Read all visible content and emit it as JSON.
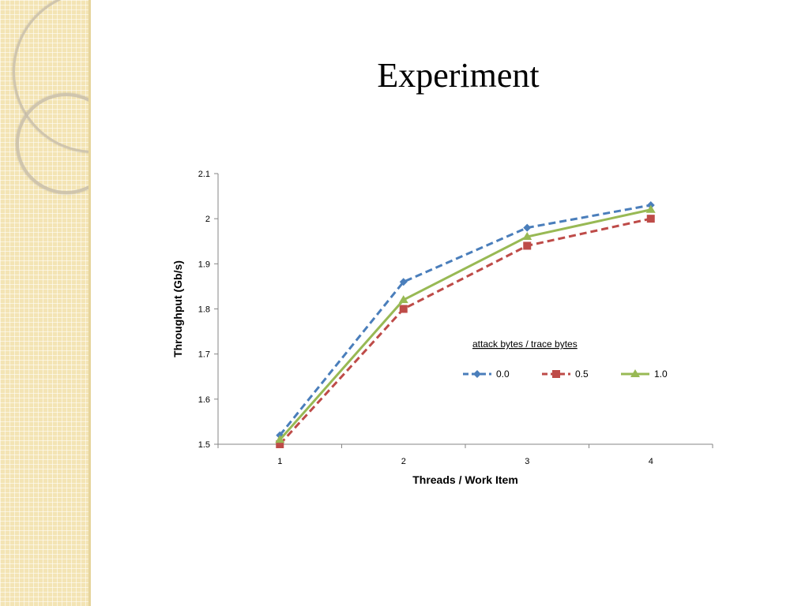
{
  "slide": {
    "title": "Experiment"
  },
  "chart_data": {
    "type": "line",
    "title": "",
    "xlabel": "Threads / Work Item",
    "ylabel": "Throughput (Gb/s)",
    "categories": [
      "1",
      "2",
      "3",
      "4"
    ],
    "ylim": [
      1.5,
      2.1
    ],
    "yticks": [
      "1.5",
      "1.6",
      "1.7",
      "1.8",
      "1.9",
      "2",
      "2.1"
    ],
    "grid": false,
    "legend": {
      "title": "attack bytes / trace bytes",
      "position": "inside-right"
    },
    "series": [
      {
        "name": "0.0",
        "values": [
          1.52,
          1.86,
          1.98,
          2.03
        ],
        "color": "#4a7ebb",
        "marker": "diamond",
        "dash": "dashed"
      },
      {
        "name": "0.5",
        "values": [
          1.5,
          1.8,
          1.94,
          2.0
        ],
        "color": "#be4b48",
        "marker": "square",
        "dash": "dashed"
      },
      {
        "name": "1.0",
        "values": [
          1.51,
          1.82,
          1.96,
          2.02
        ],
        "color": "#98b954",
        "marker": "triangle",
        "dash": "solid"
      }
    ]
  }
}
